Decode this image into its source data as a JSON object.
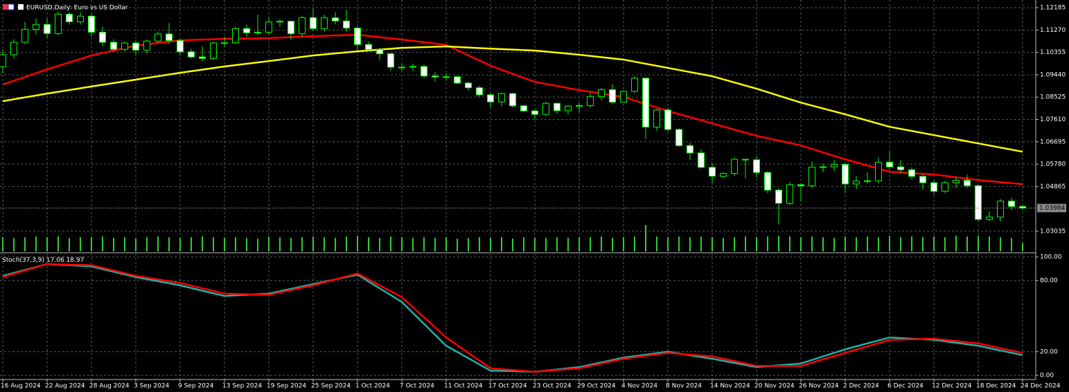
{
  "title": "EURUSD,Daily: Euro vs US Dollar",
  "chart_data": [
    {
      "type": "candlestick",
      "open": [
        1.0977,
        1.1026,
        1.1077,
        1.113,
        1.115,
        1.1113,
        1.1192,
        1.1161,
        1.1184,
        1.1118,
        1.1077,
        1.1048,
        1.1074,
        1.1045,
        1.1082,
        1.1111,
        1.1084,
        1.1038,
        1.1017,
        1.1011,
        1.1074,
        1.1075,
        1.1133,
        1.1116,
        1.1118,
        1.116,
        1.1163,
        1.1112,
        1.1178,
        1.1133,
        1.1177,
        1.1164,
        1.1135,
        1.1068,
        1.1047,
        1.103,
        1.0975,
        1.0975,
        1.0978,
        1.0939,
        1.0935,
        1.0936,
        1.091,
        1.0891,
        1.0862,
        1.0833,
        1.0867,
        1.0817,
        1.0796,
        1.0782,
        1.0827,
        1.0797,
        1.0816,
        1.0818,
        1.0855,
        1.0883,
        1.0832,
        1.0876,
        1.093,
        1.073,
        1.08,
        1.072,
        1.0654,
        1.0624,
        1.0565,
        1.0529,
        1.054,
        1.0598,
        1.0596,
        1.0544,
        1.0472,
        1.0418,
        1.0494,
        1.049,
        1.0566,
        1.0567,
        1.0577,
        1.0497,
        1.0509,
        1.051,
        1.0586,
        1.0567,
        1.0555,
        1.0528,
        1.0502,
        1.0467,
        1.0502,
        1.0512,
        1.049,
        1.0352,
        1.0362,
        1.0427,
        1.0405
      ],
      "high": [
        1.1048,
        1.109,
        1.116,
        1.1175,
        1.1174,
        1.1201,
        1.12,
        1.12,
        1.119,
        1.114,
        1.109,
        1.108,
        1.1085,
        1.109,
        1.112,
        1.1155,
        1.109,
        1.105,
        1.106,
        1.108,
        1.11,
        1.114,
        1.115,
        1.119,
        1.118,
        1.117,
        1.1165,
        1.1185,
        1.1214,
        1.119,
        1.12,
        1.121,
        1.1144,
        1.108,
        1.1055,
        1.1035,
        1.099,
        1.099,
        1.0985,
        1.0955,
        1.095,
        1.094,
        1.0915,
        1.09,
        1.087,
        1.087,
        1.087,
        1.082,
        1.08,
        1.0835,
        1.083,
        1.082,
        1.083,
        1.087,
        1.089,
        1.0905,
        1.088,
        1.0937,
        1.093,
        1.0805,
        1.081,
        1.0725,
        1.0665,
        1.064,
        1.058,
        1.0545,
        1.0605,
        1.06,
        1.061,
        1.055,
        1.048,
        1.0505,
        1.05,
        1.059,
        1.058,
        1.0595,
        1.058,
        1.053,
        1.0545,
        1.0605,
        1.063,
        1.0595,
        1.0565,
        1.0535,
        1.051,
        1.051,
        1.0525,
        1.0535,
        1.0495,
        1.0385,
        1.0435,
        1.044,
        1.041
      ],
      "low": [
        1.095,
        1.101,
        1.107,
        1.111,
        1.1095,
        1.1105,
        1.115,
        1.115,
        1.11,
        1.106,
        1.104,
        1.104,
        1.1025,
        1.103,
        1.1075,
        1.107,
        1.1025,
        1.101,
        1.1,
        1.1005,
        1.106,
        1.107,
        1.11,
        1.1105,
        1.111,
        1.114,
        1.1085,
        1.11,
        1.1125,
        1.112,
        1.115,
        1.112,
        1.1045,
        1.104,
        1.1005,
        1.096,
        1.096,
        1.096,
        1.093,
        1.0915,
        1.092,
        1.0905,
        1.088,
        1.0855,
        1.081,
        1.0815,
        1.081,
        1.079,
        1.076,
        1.0775,
        1.0785,
        1.078,
        1.079,
        1.081,
        1.084,
        1.0825,
        1.083,
        1.087,
        1.0682,
        1.0715,
        1.071,
        1.065,
        1.0595,
        1.056,
        1.05,
        1.052,
        1.053,
        1.052,
        1.0525,
        1.046,
        1.0332,
        1.041,
        1.0425,
        1.048,
        1.0545,
        1.055,
        1.046,
        1.0475,
        1.05,
        1.05,
        1.0555,
        1.054,
        1.0515,
        1.0475,
        1.0455,
        1.046,
        1.048,
        1.048,
        1.0345,
        1.0345,
        1.0345,
        1.039,
        1.039
      ],
      "close": [
        1.1026,
        1.1077,
        1.113,
        1.115,
        1.1113,
        1.1192,
        1.1161,
        1.1184,
        1.1118,
        1.1077,
        1.1048,
        1.1074,
        1.1045,
        1.1082,
        1.1111,
        1.1084,
        1.1038,
        1.1017,
        1.1011,
        1.1074,
        1.1075,
        1.1133,
        1.1116,
        1.1118,
        1.116,
        1.1163,
        1.1112,
        1.1178,
        1.1133,
        1.1177,
        1.1164,
        1.1135,
        1.1068,
        1.1047,
        1.103,
        1.0975,
        1.0975,
        1.0978,
        1.0939,
        1.0935,
        1.0936,
        1.091,
        1.0891,
        1.0862,
        1.0833,
        1.0867,
        1.0817,
        1.0796,
        1.0782,
        1.0827,
        1.0797,
        1.0816,
        1.0818,
        1.0855,
        1.0883,
        1.0832,
        1.0876,
        1.093,
        1.073,
        1.08,
        1.072,
        1.0654,
        1.0624,
        1.0565,
        1.0529,
        1.054,
        1.0598,
        1.0596,
        1.0544,
        1.0472,
        1.0418,
        1.0494,
        1.049,
        1.0566,
        1.0567,
        1.0577,
        1.0497,
        1.0509,
        1.051,
        1.0586,
        1.0567,
        1.0555,
        1.0528,
        1.0502,
        1.0467,
        1.0502,
        1.0512,
        1.049,
        1.0352,
        1.0362,
        1.0427,
        1.0405,
        1.03984
      ],
      "volume": [
        20,
        19,
        20,
        21,
        20,
        21,
        19,
        20,
        20,
        21,
        19,
        20,
        18,
        20,
        21,
        20,
        19,
        20,
        21,
        20,
        19,
        20,
        19,
        18,
        21,
        20,
        19,
        20,
        21,
        20,
        19,
        21,
        22,
        20,
        19,
        21,
        20,
        19,
        20,
        19,
        20,
        18,
        19,
        20,
        19,
        20,
        18,
        20,
        19,
        19,
        20,
        19,
        20,
        20,
        21,
        19,
        20,
        21,
        37,
        21,
        20,
        21,
        20,
        21,
        20,
        19,
        20,
        21,
        20,
        21,
        22,
        21,
        20,
        21,
        20,
        19,
        21,
        20,
        21,
        20,
        22,
        20,
        21,
        20,
        21,
        20,
        22,
        21,
        22,
        21,
        20,
        19,
        12
      ],
      "bull_body": "#000000",
      "bear_body": "#ffffff",
      "candle_line": "#00ff00",
      "volume_color": "#32cd32",
      "series": [
        {
          "color": "#ff0000",
          "values": [
            1.0904,
            1.0966,
            1.1023,
            1.1063,
            1.1085,
            1.1091,
            1.1094,
            1.1102,
            1.1108,
            1.1088,
            1.1066,
            1.0981,
            1.0915,
            1.0881,
            1.0853,
            1.0796,
            1.0745,
            1.0694,
            1.0655,
            1.0598,
            1.0547,
            1.0536,
            1.0513,
            1.0496
          ]
        },
        {
          "color": "#ffff00",
          "values": [
            1.0836,
            1.0867,
            1.0896,
            1.0924,
            1.0952,
            1.0978,
            1.1,
            1.1023,
            1.104,
            1.1054,
            1.106,
            1.1051,
            1.1043,
            1.1026,
            1.1006,
            1.0972,
            1.0938,
            1.0887,
            1.083,
            1.0782,
            1.0731,
            1.0697,
            1.0663,
            1.0629
          ]
        }
      ],
      "ylim": [
        1.0221,
        1.125
      ],
      "yticks": [
        1.12185,
        {
          "value": 1.1127,
          "label": "1.11270"
        },
        1.10355,
        {
          "value": 1.0944,
          "label": "1.09440"
        },
        1.08525,
        {
          "value": 1.0761,
          "label": "1.07610"
        },
        1.06695,
        {
          "value": 1.0578,
          "label": "1.05780"
        },
        1.04865,
        1.03035
      ],
      "grid": true
    },
    {
      "type": "line",
      "label": "Stoch(37,3,9)",
      "categories": [
        "16 Aug 2024",
        "22 Aug 2024",
        "28 Aug 2024",
        "3 Sep 2024",
        "9 Sep 2024",
        "13 Sep 2024",
        "19 Sep 2024",
        "25 Sep 2024",
        "1 Oct 2024",
        "7 Oct 2024",
        "11 Oct 2024",
        "17 Oct 2024",
        "23 Oct 2024",
        "29 Oct 2024",
        "4 Nov 2024",
        "8 Nov 2024",
        "14 Nov 2024",
        "20 Nov 2024",
        "26 Nov 2024",
        "2 Dec 2024",
        "6 Dec 2024",
        "12 Dec 2024",
        "18 Dec 2024",
        "24 Dec 2024"
      ],
      "series": [
        {
          "color": "#20b2aa",
          "values": [
            84,
            94,
            92,
            83,
            76,
            67,
            69,
            77,
            85,
            62,
            25,
            4,
            3,
            7,
            15,
            20,
            14,
            7,
            10,
            22,
            32,
            30,
            25,
            17.06
          ]
        },
        {
          "color": "#ff0000",
          "values": [
            83,
            94,
            93,
            84,
            78,
            69,
            68,
            76,
            86,
            66,
            32,
            6,
            3,
            6,
            14,
            19,
            16,
            8,
            8,
            19,
            30,
            31,
            27,
            18.97
          ]
        }
      ],
      "ylim": [
        -3.5,
        102.3
      ],
      "yticks": [
        {
          "value": 100,
          "label": "100.00"
        },
        {
          "value": 80,
          "label": "80.00"
        },
        {
          "value": 20,
          "label": "20.00"
        },
        {
          "value": 0,
          "label": "0.00"
        }
      ],
      "grid": true
    }
  ]
}
